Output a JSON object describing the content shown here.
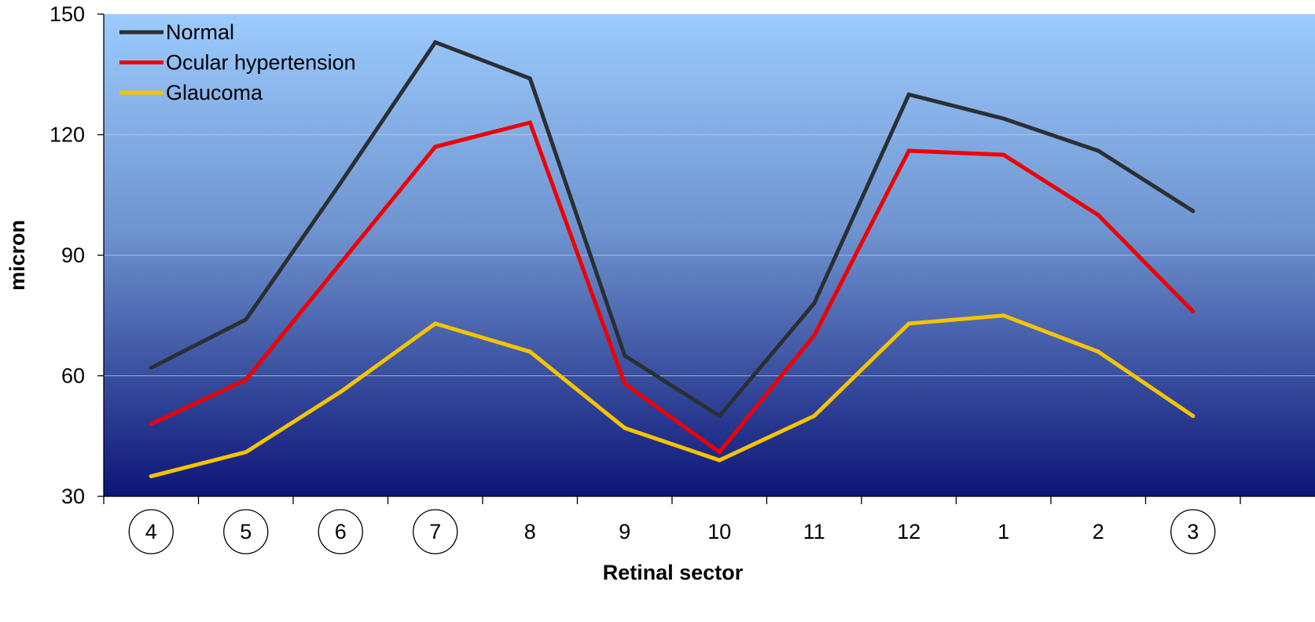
{
  "chart_data": {
    "type": "line",
    "categories": [
      "4",
      "5",
      "6",
      "7",
      "8",
      "9",
      "10",
      "11",
      "12",
      "1",
      "2",
      "3"
    ],
    "circled_categories": [
      "4",
      "5",
      "6",
      "7",
      "3"
    ],
    "series": [
      {
        "name": "Normal",
        "color": "#2b2f33",
        "values": [
          62,
          74,
          108,
          143,
          134,
          65,
          50,
          78,
          130,
          124,
          116,
          101
        ]
      },
      {
        "name": "Ocular hypertension",
        "color": "#ee0000",
        "values": [
          48,
          59,
          88,
          117,
          123,
          58,
          41,
          70,
          116,
          115,
          100,
          76
        ]
      },
      {
        "name": "Glaucoma",
        "color": "#f5c400",
        "values": [
          35,
          41,
          56,
          73,
          66,
          47,
          39,
          50,
          73,
          75,
          66,
          50
        ]
      }
    ],
    "xlabel": "Retinal sector",
    "ylabel": "micron",
    "ylim": [
      30,
      150
    ],
    "yticks": [
      "30",
      "60",
      "90",
      "120",
      "150"
    ],
    "grid": true,
    "legend": "top-left",
    "background": {
      "top": "#9ccbfd",
      "bottom": "#0d1577"
    }
  }
}
